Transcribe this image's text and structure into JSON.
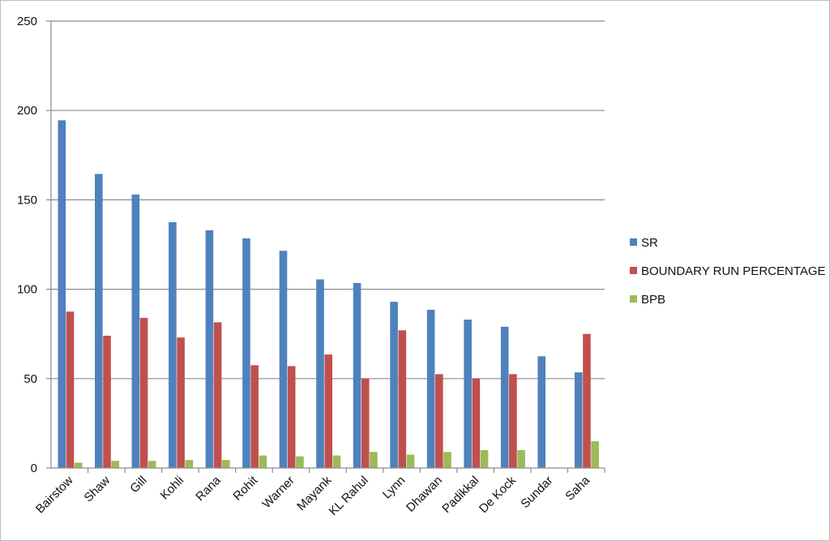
{
  "chart_data": {
    "type": "bar",
    "categories": [
      "Bairstow",
      "Shaw",
      "Gill",
      "Kohli",
      "Rana",
      "Rohit",
      "Warner",
      "Mayank",
      "KL Rahul",
      "Lynn",
      "Dhawan",
      "Padikkal",
      "De Kock",
      "Sundar",
      "Saha"
    ],
    "series": [
      {
        "name": "SR",
        "color": "#4F81BD",
        "values": [
          194.5,
          164.5,
          153,
          137.5,
          133,
          128.5,
          121.5,
          105.5,
          103.5,
          93,
          88.5,
          83,
          79,
          62.5,
          53.5
        ]
      },
      {
        "name": "BOUNDARY RUN PERCENTAGE",
        "color": "#C0504D",
        "values": [
          87.5,
          74,
          84,
          73,
          81.5,
          57.5,
          57,
          63.5,
          50,
          77,
          52.5,
          50,
          52.5,
          0,
          75
        ]
      },
      {
        "name": "BPB",
        "color": "#9BBB59",
        "values": [
          3,
          4,
          4,
          4.5,
          4.5,
          7,
          6.5,
          7,
          9,
          7.5,
          9,
          10,
          10,
          0,
          15
        ]
      }
    ],
    "ylim": [
      0,
      250
    ],
    "yticks": [
      0,
      50,
      100,
      150,
      200,
      250
    ],
    "grid": true,
    "legend_position": "right",
    "title": "",
    "xlabel": "",
    "ylabel": ""
  }
}
